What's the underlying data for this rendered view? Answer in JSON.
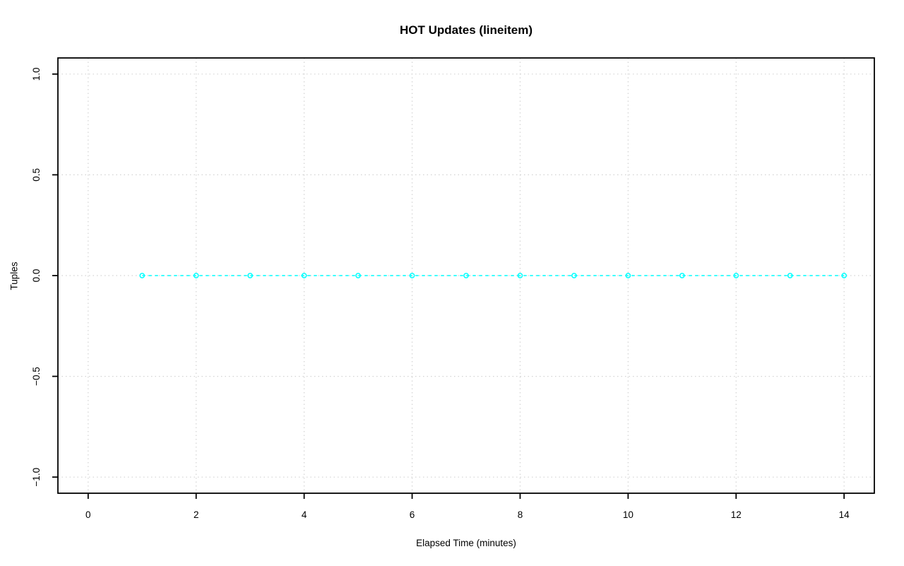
{
  "chart_data": {
    "type": "line",
    "title": "HOT Updates (lineitem)",
    "xlabel": "Elapsed Time (minutes)",
    "ylabel": "Tuples",
    "x": [
      1,
      2,
      3,
      4,
      5,
      6,
      7,
      8,
      9,
      10,
      11,
      12,
      13,
      14
    ],
    "series": [
      {
        "name": "HOT Updates",
        "values": [
          0,
          0,
          0,
          0,
          0,
          0,
          0,
          0,
          0,
          0,
          0,
          0,
          0,
          0
        ]
      }
    ],
    "xlim": [
      -0.56,
      14.56
    ],
    "ylim": [
      -1.08,
      1.08
    ],
    "xticks": [
      0,
      2,
      4,
      6,
      8,
      10,
      12,
      14
    ],
    "xtick_labels": [
      "0",
      "2",
      "4",
      "6",
      "8",
      "10",
      "12",
      "14"
    ],
    "yticks": [
      -1.0,
      -0.5,
      0.0,
      0.5,
      1.0
    ],
    "ytick_labels": [
      "−1.0",
      "−0.5",
      "0.0",
      "0.5",
      "1.0"
    ],
    "grid": true,
    "legend": "none",
    "marker": "open-circle",
    "line_style": "dashed",
    "colors": {
      "series": "#00ffff",
      "grid": "#d3d3d3",
      "axis": "#000000",
      "background": "#ffffff",
      "text": "#000000"
    }
  }
}
